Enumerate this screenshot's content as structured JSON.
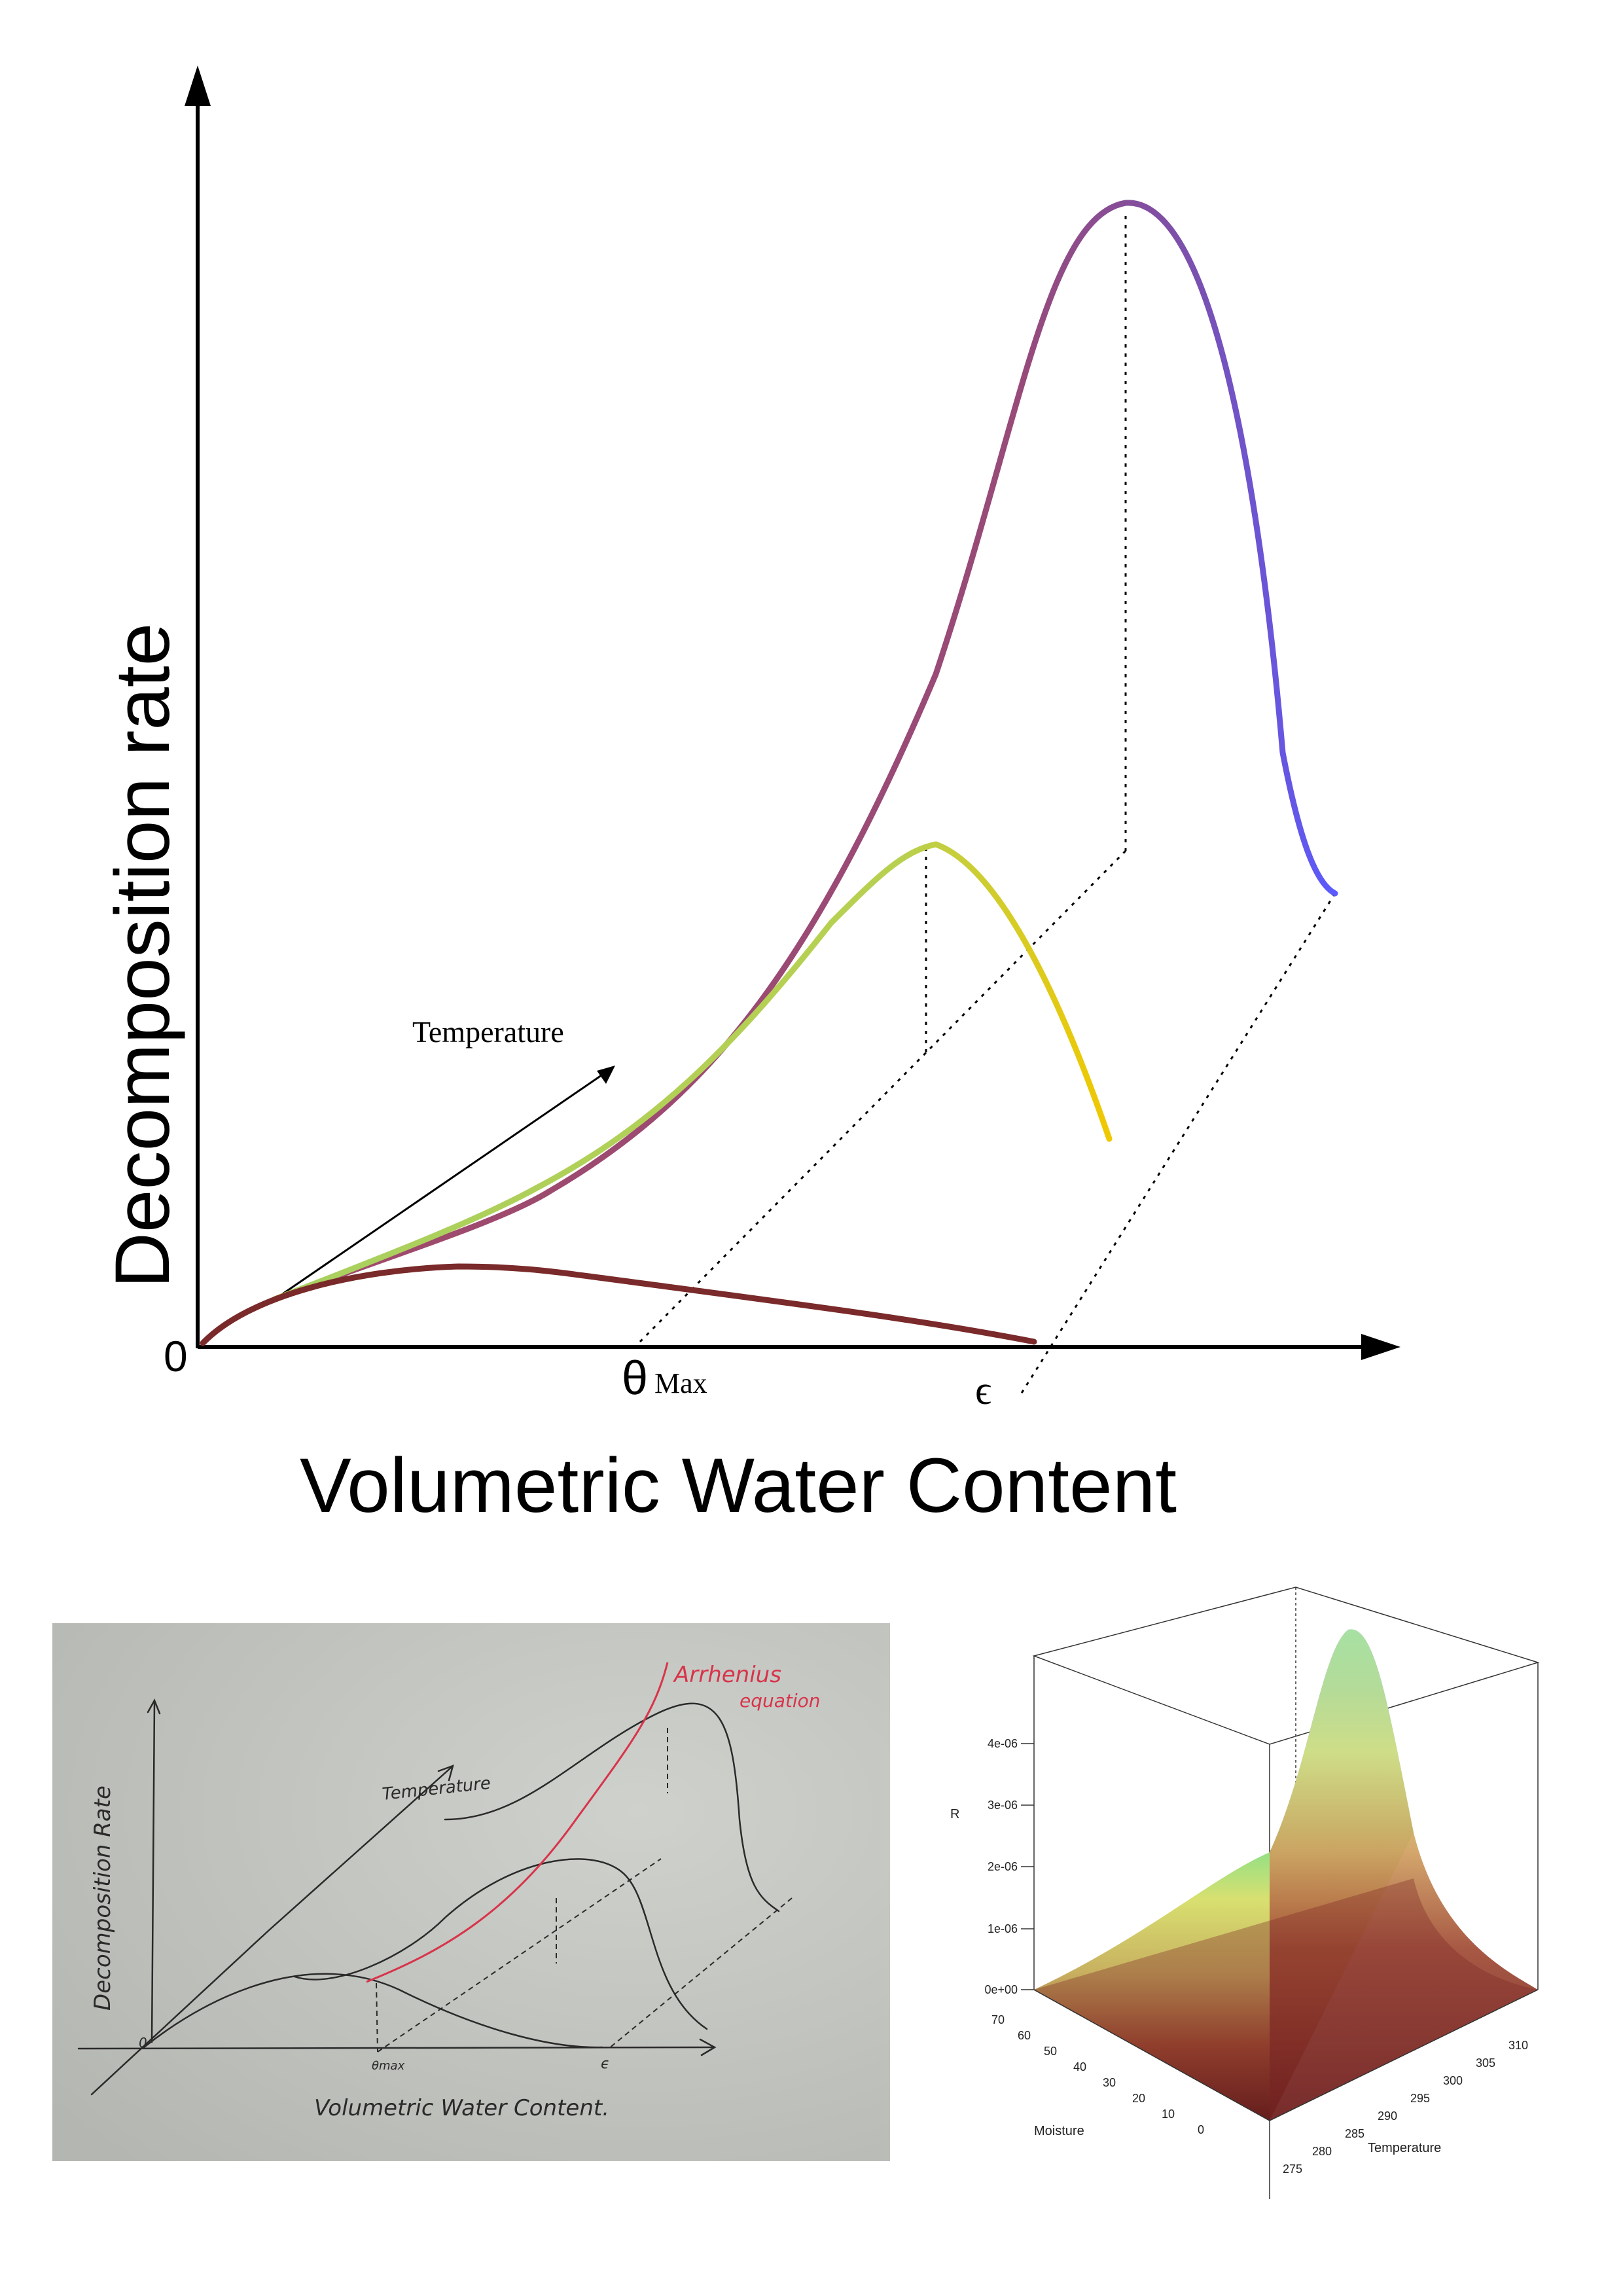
{
  "main_diagram": {
    "y_axis_label": "Decomposition rate",
    "x_axis_label": "Volumetric Water Content",
    "origin_label": "0",
    "theta_symbol": "θ",
    "theta_subscript": "Max",
    "epsilon_label": "ϵ",
    "temperature_label": "Temperature",
    "colors": {
      "low_temp_curve": "#7a2a2a",
      "mid_temp_curve_start": "#a8d060",
      "mid_temp_curve_end": "#f0c800",
      "high_temp_curve_start": "#a0406a",
      "high_temp_curve_end": "#6060ff"
    }
  },
  "sketch_photo": {
    "y_axis_label": "Decomposition Rate",
    "x_axis_label": "Volumetric Water Content.",
    "temperature_label": "Temperature",
    "origin_label": "0",
    "theta_label": "θmax",
    "epsilon_label": "ϵ",
    "arrhenius_label_line1": "Arrhenius",
    "arrhenius_label_line2": "equation",
    "arrhenius_color": "#d8344a"
  },
  "surface_plot": {
    "z_axis_label": "R",
    "x_axis_label": "Moisture",
    "y_axis_label": "Temperature",
    "z_ticks": [
      "0e+00",
      "1e-06",
      "2e-06",
      "3e-06",
      "4e-06"
    ],
    "moisture_ticks": [
      "0",
      "10",
      "20",
      "30",
      "40",
      "50",
      "60",
      "70"
    ],
    "temperature_ticks": [
      "275",
      "280",
      "285",
      "290",
      "295",
      "300",
      "305",
      "310"
    ]
  }
}
